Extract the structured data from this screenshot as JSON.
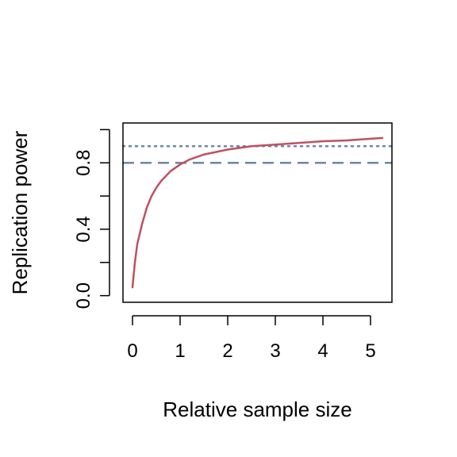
{
  "chart_data": {
    "type": "line",
    "xlabel": "Relative sample size",
    "ylabel": "Replication power",
    "xlim": [
      -0.2,
      5.45
    ],
    "ylim": [
      -0.04,
      1.04
    ],
    "x_ticks": [
      0,
      1,
      2,
      3,
      4,
      5
    ],
    "x_tick_labels": [
      "0",
      "1",
      "2",
      "3",
      "4",
      "5"
    ],
    "y_ticks": [
      0,
      0.2,
      0.4,
      0.6,
      0.8,
      1.0
    ],
    "y_tick_labels": [
      "0.0",
      "",
      "0.4",
      "",
      "0.8",
      ""
    ],
    "grid": false,
    "series": [
      {
        "color": "#c05060",
        "style": "solid",
        "x": [
          0,
          0.05,
          0.1,
          0.2,
          0.3,
          0.4,
          0.5,
          0.6,
          0.8,
          1.0,
          1.2,
          1.5,
          2.0,
          2.5,
          3.0,
          3.5,
          4.0,
          4.5,
          5.0,
          5.25
        ],
        "y": [
          0.05,
          0.2,
          0.31,
          0.43,
          0.53,
          0.6,
          0.65,
          0.69,
          0.75,
          0.79,
          0.82,
          0.85,
          0.88,
          0.9,
          0.91,
          0.92,
          0.93,
          0.935,
          0.945,
          0.95
        ]
      }
    ],
    "reference_lines": [
      {
        "y": 0.8,
        "color": "#6a86a8",
        "style": "dashed"
      },
      {
        "y": 0.9,
        "color": "#6a86a8",
        "style": "dotted"
      }
    ]
  }
}
